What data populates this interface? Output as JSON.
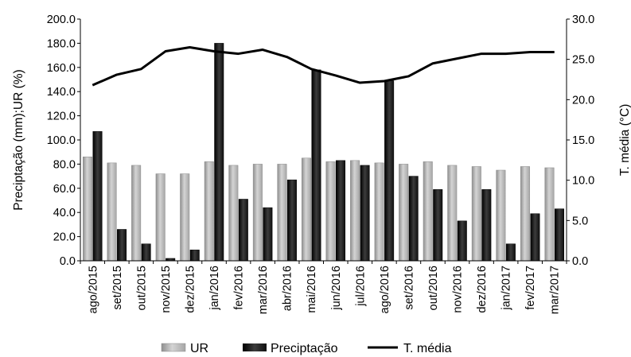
{
  "chart_data": {
    "type": "bar",
    "categories": [
      "ago/2015",
      "set/2015",
      "out/2015",
      "nov/2015",
      "dez/2015",
      "jan/2016",
      "fev/2016",
      "mar/2016",
      "abr/2016",
      "mai/2016",
      "jun/2016",
      "jul/2016",
      "ago/2016",
      "set/2016",
      "out/2016",
      "nov/2016",
      "dez/2016",
      "jan/2017",
      "fev/2017",
      "mar/2017"
    ],
    "series": [
      {
        "name": "UR",
        "type": "bar",
        "axis": "left",
        "color": "#b4b4b4",
        "values": [
          86,
          81,
          79,
          72,
          72,
          82,
          79,
          80,
          80,
          85,
          82,
          83,
          81,
          80,
          82,
          79,
          78,
          75,
          78,
          77
        ]
      },
      {
        "name": "Preciptação",
        "type": "bar",
        "axis": "left",
        "color": "#1e1e1e",
        "values": [
          107,
          26,
          14,
          2,
          9,
          180,
          51,
          44,
          67,
          158,
          83,
          79,
          149,
          70,
          59,
          33,
          59,
          14,
          39,
          43
        ]
      },
      {
        "name": "T. média",
        "type": "line",
        "axis": "right",
        "color": "#000000",
        "values": [
          21.8,
          23.1,
          23.8,
          26.0,
          26.5,
          26.0,
          25.7,
          26.2,
          25.3,
          23.8,
          23.0,
          22.1,
          22.3,
          22.9,
          24.5,
          25.1,
          25.7,
          25.7,
          25.9,
          25.9
        ]
      }
    ],
    "ylabel": "Preciptação (mm);UR (%)",
    "y2label": "T. média (°C)",
    "ylim": [
      0,
      200
    ],
    "y2lim": [
      0,
      30
    ],
    "yticks": [
      "0.0",
      "20.0",
      "40.0",
      "60.0",
      "80.0",
      "100.0",
      "120.0",
      "140.0",
      "160.0",
      "180.0",
      "200.0"
    ],
    "y2ticks": [
      "0.0",
      "5.0",
      "10.0",
      "15.0",
      "20.0",
      "25.0",
      "30.0"
    ],
    "grid": false,
    "legend_position": "bottom"
  }
}
